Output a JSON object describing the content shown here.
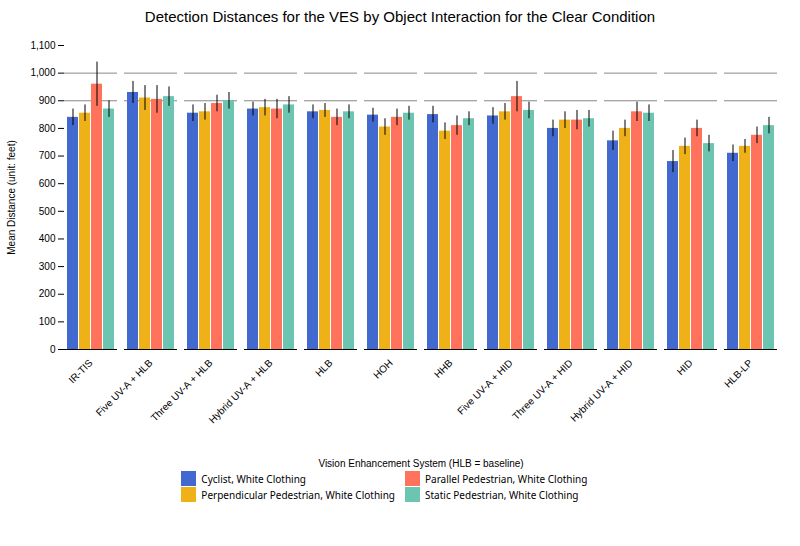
{
  "chart_data": {
    "type": "bar",
    "title": "Detection Distances for the VES by Object Interaction for the Clear Condition",
    "x_label": "Vision Enhancement System (HLB = baseline)",
    "y_label": "Mean Distance (unit: feet)",
    "ylim": [
      0,
      1100
    ],
    "yticks": [
      0,
      100,
      200,
      300,
      400,
      500,
      600,
      700,
      800,
      900,
      1000,
      1100
    ],
    "hlines": [
      900,
      1000
    ],
    "categories": [
      "IR-TIS",
      "Five UV-A + HLB",
      "Three UV-A + HLB",
      "Hybrid UV-A + HLB",
      "HLB",
      "HOH",
      "HHB",
      "Five UV-A + HID",
      "Three UV-A + HID",
      "Hybrid UV-A + HID",
      "HID",
      "HLB-LP"
    ],
    "series": [
      {
        "name": "Cyclist, White Clothing",
        "values": [
          840,
          930,
          855,
          870,
          860,
          848,
          850,
          845,
          800,
          755,
          680,
          710
        ],
        "errors": [
          30,
          40,
          30,
          25,
          25,
          25,
          30,
          30,
          30,
          35,
          40,
          30
        ]
      },
      {
        "name": "Perpendicular Pedestrian, White Clothing",
        "values": [
          855,
          910,
          860,
          875,
          865,
          805,
          790,
          860,
          830,
          800,
          735,
          735
        ],
        "errors": [
          30,
          45,
          30,
          30,
          25,
          30,
          30,
          30,
          30,
          30,
          30,
          25
        ]
      },
      {
        "name": "Parallel Pedestrian, White Clothing",
        "values": [
          960,
          905,
          890,
          870,
          840,
          840,
          810,
          915,
          830,
          860,
          800,
          775
        ],
        "errors": [
          80,
          50,
          30,
          35,
          30,
          30,
          35,
          55,
          35,
          35,
          30,
          30
        ]
      },
      {
        "name": "Static Pedestrian, White Clothing",
        "values": [
          870,
          915,
          900,
          885,
          860,
          855,
          835,
          865,
          835,
          855,
          745,
          810
        ],
        "errors": [
          30,
          35,
          30,
          30,
          25,
          25,
          25,
          30,
          30,
          30,
          30,
          30
        ]
      }
    ],
    "legend": "bottom",
    "grid": false
  }
}
